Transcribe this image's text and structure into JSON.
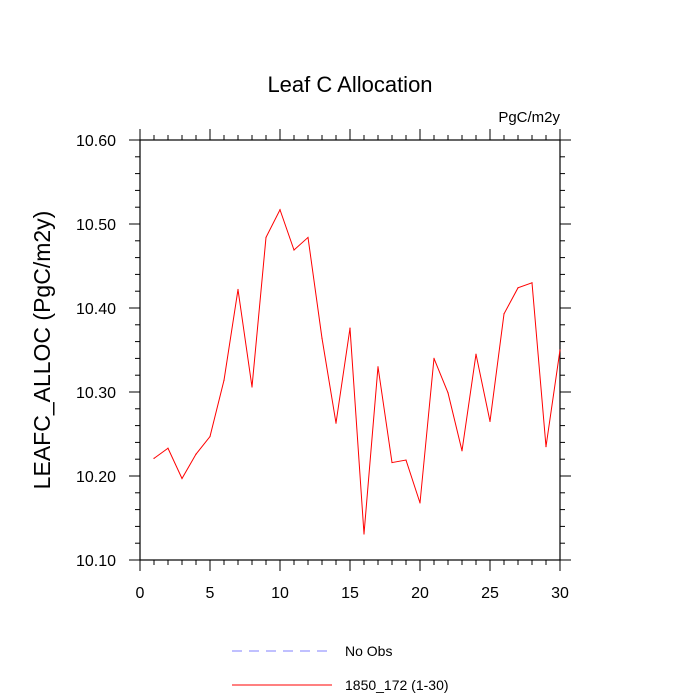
{
  "chart_data": {
    "type": "line",
    "title": "Leaf C Allocation",
    "units": "PgC/m2y",
    "ylabel": "LEAFC_ALLOC  (PgC/m2y)",
    "xlabel": "",
    "xlim": [
      0,
      30
    ],
    "ylim": [
      10.1,
      10.6
    ],
    "x_ticks": [
      0,
      5,
      10,
      15,
      20,
      25,
      30
    ],
    "x_tick_labels": [
      "0",
      "5",
      "10",
      "15",
      "20",
      "25",
      "30"
    ],
    "y_ticks": [
      10.1,
      10.2,
      10.3,
      10.4,
      10.5,
      10.6
    ],
    "y_tick_labels": [
      "10.10",
      "10.20",
      "10.30",
      "10.40",
      "10.50",
      "10.60"
    ],
    "grid": false,
    "legend_position": "bottom",
    "series": [
      {
        "name": "No Obs",
        "color": "#8080ff",
        "style": "dashed",
        "x": [],
        "values": []
      },
      {
        "name": "1850_172 (1-30)",
        "color": "#ff0000",
        "style": "solid",
        "x": [
          1,
          2,
          3,
          4,
          5,
          6,
          7,
          8,
          9,
          10,
          11,
          12,
          13,
          14,
          15,
          16,
          17,
          18,
          19,
          20,
          21,
          22,
          23,
          24,
          25,
          26,
          27,
          28,
          29,
          30
        ],
        "values": [
          10.221,
          10.233,
          10.197,
          10.226,
          10.247,
          10.314,
          10.422,
          10.306,
          10.484,
          10.517,
          10.469,
          10.484,
          10.364,
          10.263,
          10.376,
          10.131,
          10.33,
          10.216,
          10.219,
          10.168,
          10.34,
          10.299,
          10.23,
          10.345,
          10.265,
          10.393,
          10.424,
          10.43,
          10.235,
          10.35
        ]
      }
    ]
  }
}
